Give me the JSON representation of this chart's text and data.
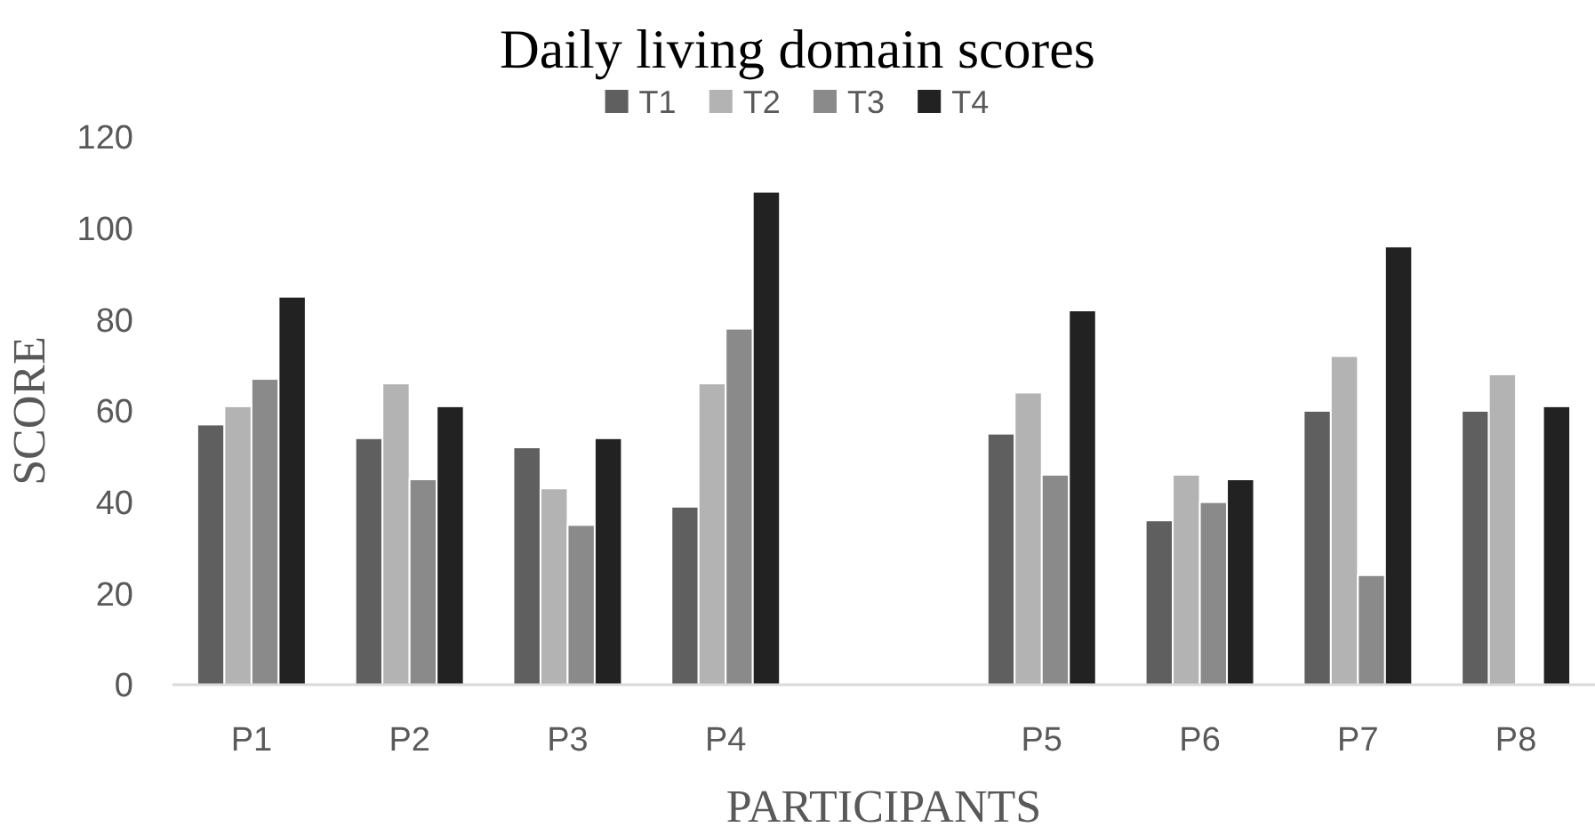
{
  "chart_data": {
    "type": "bar",
    "title": "Daily living domain scores",
    "xlabel": "PARTICIPANTS",
    "ylabel": "SCORE",
    "categories": [
      "P1",
      "P2",
      "P3",
      "P4",
      null,
      "P5",
      "P6",
      "P7",
      "P8"
    ],
    "series": [
      {
        "name": "T1",
        "color": "#5f5f5f",
        "values": [
          57,
          54,
          52,
          39,
          null,
          55,
          36,
          60,
          60
        ]
      },
      {
        "name": "T2",
        "color": "#b3b3b3",
        "values": [
          61,
          66,
          43,
          66,
          null,
          64,
          46,
          72,
          68
        ]
      },
      {
        "name": "T3",
        "color": "#8a8a8a",
        "values": [
          67,
          45,
          35,
          78,
          null,
          46,
          40,
          24,
          null
        ]
      },
      {
        "name": "T4",
        "color": "#222222",
        "values": [
          85,
          61,
          54,
          108,
          null,
          82,
          45,
          96,
          61
        ]
      }
    ],
    "ylim": [
      0,
      120
    ],
    "yticks": [
      0,
      20,
      40,
      60,
      80,
      100,
      120
    ],
    "grid": false,
    "legend": "top"
  }
}
